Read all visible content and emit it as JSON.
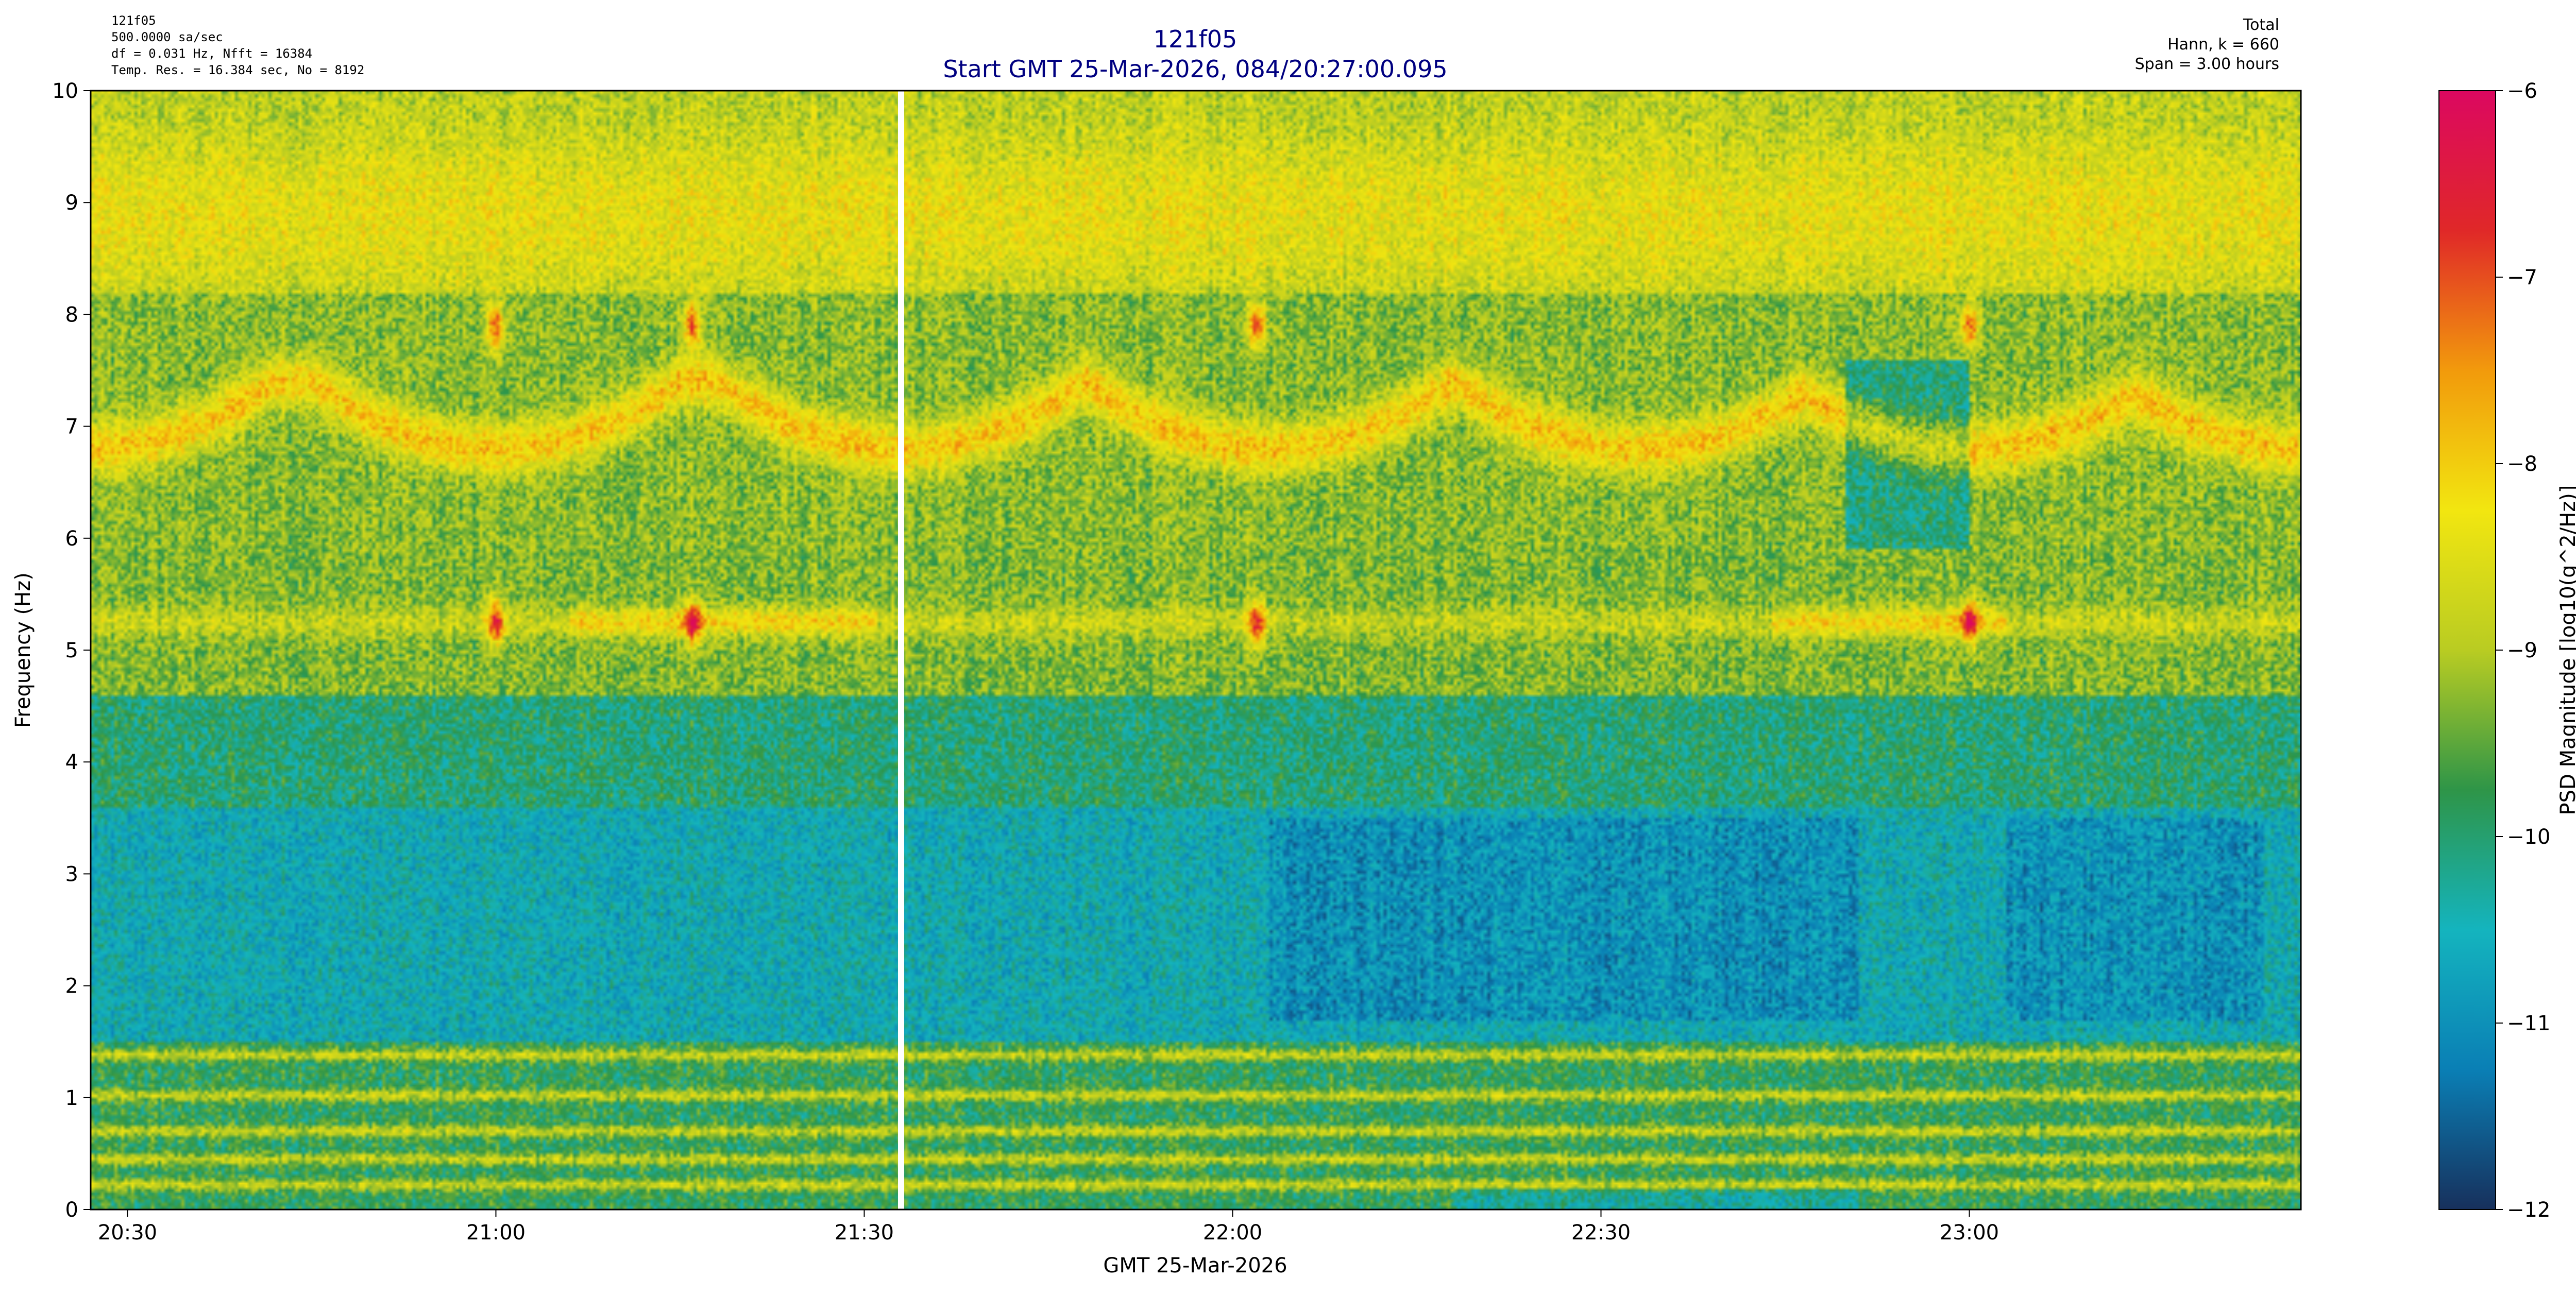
{
  "header": {
    "info_left": [
      "121f05",
      "500.0000 sa/sec",
      "df = 0.031 Hz,  Nfft = 16384",
      "Temp. Res. = 16.384 sec, No = 8192"
    ],
    "title_line1": "121f05",
    "title_line2": "Start GMT 25-Mar-2026, 084/20:27:00.095",
    "info_right": [
      "Total",
      "Hann, k = 660",
      "Span = 3.00 hours"
    ]
  },
  "colors": {
    "title": "#000080",
    "gap_line": "#ffffff",
    "colormap": [
      "#17305c",
      "#0a7fb5",
      "#14b4be",
      "#2e9548",
      "#b9cc22",
      "#f2e610",
      "#f29a0c",
      "#e02828",
      "#dc0860"
    ]
  },
  "chart_data": {
    "type": "heatmap",
    "title": "121f05",
    "subtitle": "Start GMT 25-Mar-2026, 084/20:27:00.095",
    "xlabel": "GMT 25-Mar-2026",
    "ylabel": "Frequency (Hz)",
    "x_range_minutes": [
      20.45,
      23.45
    ],
    "x_ticks": [
      "20:30",
      "21:00",
      "21:30",
      "22:00",
      "22:30",
      "23:00"
    ],
    "y_range": [
      0,
      10
    ],
    "y_ticks": [
      "0",
      "1",
      "2",
      "3",
      "4",
      "5",
      "6",
      "7",
      "8",
      "9",
      "10"
    ],
    "colorbar": {
      "label": "PSD Magnitude [log10(g^2/Hz)]",
      "range": [
        -12,
        -6
      ],
      "ticks": [
        "-12",
        "-11",
        "-10",
        "-9",
        "-8",
        "-7",
        "-6"
      ]
    },
    "data_gap_time": "21:33",
    "features": {
      "low_frequency_bands_hz": [
        0.22,
        0.45,
        0.7,
        1.02,
        1.38
      ],
      "band_5hz_bright_segments": [
        [
          "21:06",
          "21:31"
        ],
        [
          "22:44",
          "23:03"
        ]
      ],
      "arc_band_center_hz": 7.0,
      "hot_spots": [
        {
          "time": "21:00",
          "freq": 7.9
        },
        {
          "time": "21:16",
          "freq": 7.9
        },
        {
          "time": "22:02",
          "freq": 7.9
        },
        {
          "time": "23:00",
          "freq": 7.9
        },
        {
          "time": "21:00",
          "freq": 5.25
        },
        {
          "time": "21:16",
          "freq": 5.25
        },
        {
          "time": "22:02",
          "freq": 5.25
        },
        {
          "time": "23:00",
          "freq": 5.25
        }
      ],
      "gap_time": "21:33"
    },
    "grid": false
  }
}
